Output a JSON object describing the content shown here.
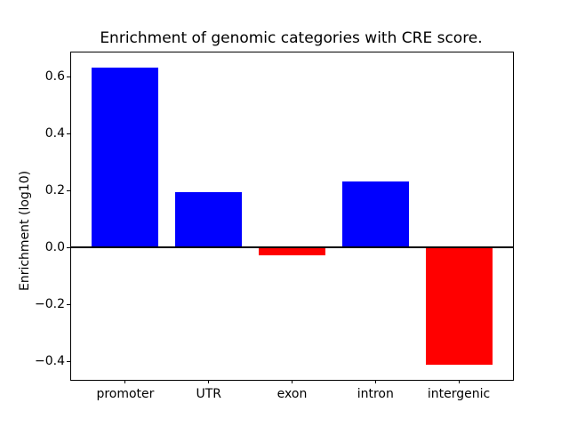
{
  "chart_data": {
    "type": "bar",
    "title": "Enrichment of genomic categories with CRE score.",
    "ylabel": "Enrichment (log10)",
    "xlabel": "",
    "categories": [
      "promoter",
      "UTR",
      "exon",
      "intron",
      "intergenic"
    ],
    "values": [
      0.634,
      0.195,
      -0.026,
      0.234,
      -0.413
    ],
    "colors": [
      "#0000ff",
      "#0000ff",
      "#ff0000",
      "#0000ff",
      "#ff0000"
    ],
    "positive_color": "#0000ff",
    "negative_color": "#ff0000",
    "bar_width": 0.8,
    "yticks": [
      {
        "value": 0.6,
        "label": "0.6"
      },
      {
        "value": 0.4,
        "label": "0.4"
      },
      {
        "value": 0.2,
        "label": "0.2"
      },
      {
        "value": 0.0,
        "label": "0.0"
      },
      {
        "value": -0.2,
        "label": "−0.2"
      },
      {
        "value": -0.4,
        "label": "−0.4"
      }
    ],
    "ylim": [
      -0.465,
      0.686
    ],
    "xlim": [
      -0.65,
      4.65
    ],
    "zero_line": true,
    "grid": false,
    "legend": null,
    "background_color": "#ffffff",
    "frame_color": "#000000"
  }
}
